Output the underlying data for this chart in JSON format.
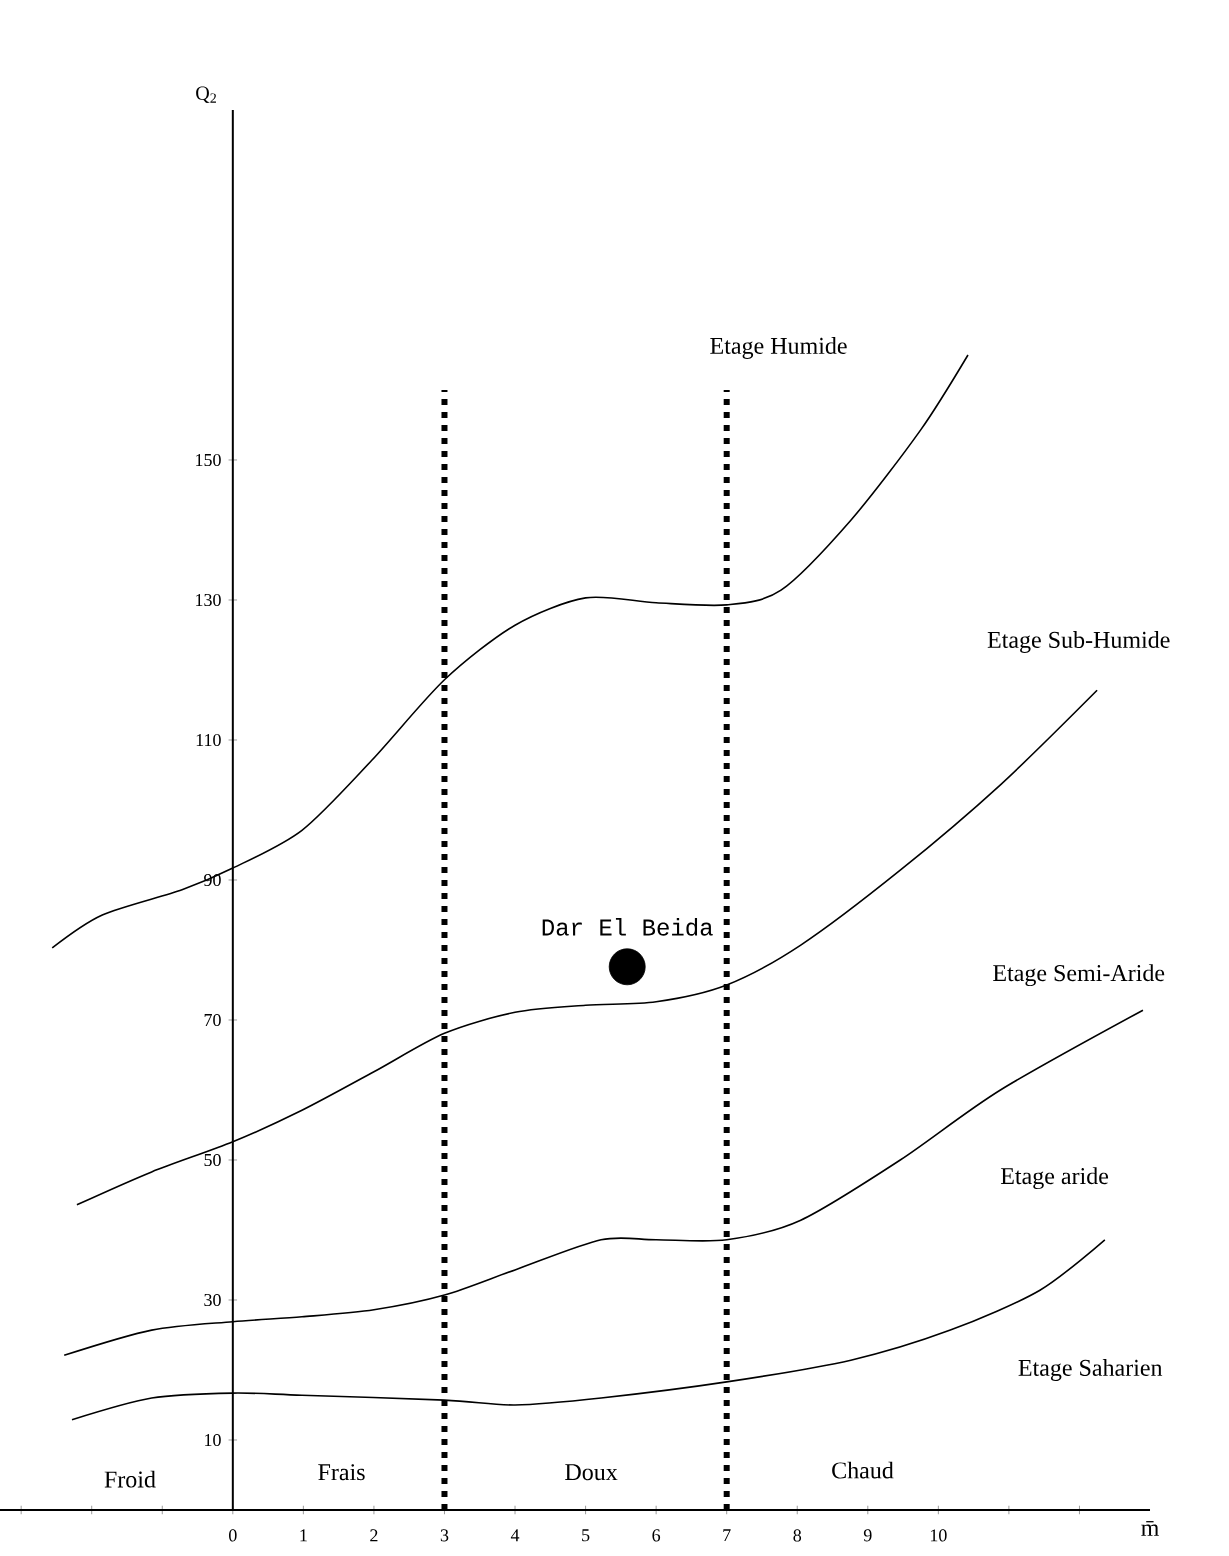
{
  "chart_data": {
    "type": "line",
    "xlabel": "m̄",
    "ylabel": "Q$_{2}$",
    "xlim": [
      -3.3,
      13
    ],
    "ylim": [
      0,
      200
    ],
    "xticks": [
      {
        "value": -3,
        "label": null
      },
      {
        "value": -2,
        "label": null
      },
      {
        "value": -1,
        "label": null
      },
      0,
      1,
      2,
      3,
      4,
      5,
      6,
      7,
      8,
      9,
      10,
      {
        "value": 11,
        "label": null
      },
      {
        "value": 12,
        "label": null
      }
    ],
    "yticks": [
      10,
      30,
      50,
      70,
      90,
      110,
      130,
      150
    ],
    "series": [
      {
        "color": "#000000",
        "x": [
          -2.56,
          -1.85,
          -0.72,
          0,
          0.98,
          1.97,
          3,
          4,
          5,
          6,
          7,
          7.77,
          8.76,
          9.75,
          10.42
        ],
        "values": [
          80.3,
          85,
          88.6,
          91.7,
          97.1,
          107.1,
          118.6,
          126.4,
          130.3,
          129.6,
          129.3,
          131.4,
          141.4,
          154.3,
          165
        ]
      },
      {
        "color": "#000000",
        "x": [
          -2.21,
          -1.15,
          0,
          0.98,
          2,
          3,
          4,
          5,
          6,
          7,
          8.05,
          9.46,
          10.88,
          12.25
        ],
        "values": [
          43.6,
          48.3,
          52.6,
          57.1,
          62.6,
          68.1,
          71.1,
          72.1,
          72.6,
          75,
          80.7,
          91.4,
          103.6,
          117.1
        ]
      },
      {
        "color": "#000000",
        "x": [
          -2.39,
          -1.15,
          0,
          0.98,
          2,
          3,
          4,
          5.22,
          6,
          7,
          8.05,
          9.46,
          10.88,
          12.9
        ],
        "values": [
          22.1,
          25.7,
          26.9,
          27.6,
          28.6,
          30.7,
          34.3,
          38.6,
          38.6,
          38.6,
          41.4,
          50,
          60,
          71.4
        ]
      },
      {
        "color": "#000000",
        "x": [
          -2.28,
          -1.15,
          0,
          0.98,
          3,
          4,
          5.22,
          7,
          8.76,
          10.17,
          11.44,
          12.36
        ],
        "values": [
          12.9,
          16,
          16.7,
          16.4,
          15.7,
          15,
          16,
          18.3,
          21.4,
          25.7,
          31.4,
          38.6
        ]
      },
      {
        "type": "scatter",
        "name": "Dar El Beida",
        "color": "#000000",
        "x": [
          5.59
        ],
        "values": [
          77.6
        ]
      }
    ],
    "ref_lines": [
      {
        "axis": "x",
        "value": 3,
        "color": "#000000",
        "line_style": "dotted"
      },
      {
        "axis": "x",
        "value": 7,
        "color": "#000000",
        "line_style": "dotted"
      }
    ],
    "annotations": [
      "Etage Humide",
      "Etage Sub-Humide",
      "Etage Semi-Aride",
      "Etage aride",
      "Etage Saharien",
      "Froid",
      "Frais",
      "Doux",
      "Chaud"
    ]
  }
}
